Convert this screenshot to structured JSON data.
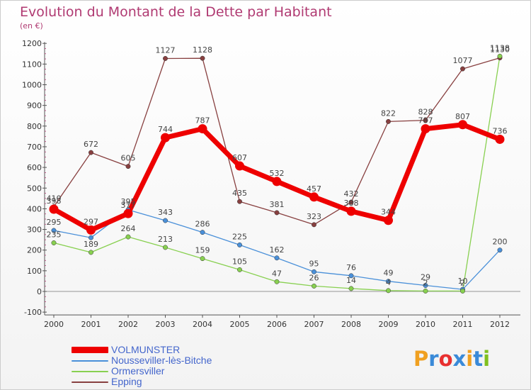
{
  "header": {
    "title": "Evolution du Montant de la Dette par Habitant",
    "subtitle": "(en €)"
  },
  "brand": {
    "logo_text": "Proxiti",
    "logo_colors": [
      "#f0a020",
      "#3a8ad8",
      "#e83030",
      "#3a8ad8",
      "#f0a020",
      "#3a8ad8",
      "#80c020"
    ]
  },
  "chart_data": {
    "type": "line",
    "title": "Evolution du Montant de la Dette par Habitant",
    "subtitle": "(en €)",
    "xlabel": "",
    "ylabel": "",
    "ylim": [
      -100,
      1200
    ],
    "yticks": [
      -100,
      0,
      100,
      200,
      300,
      400,
      500,
      600,
      700,
      800,
      900,
      1000,
      1100,
      1200
    ],
    "x": [
      "2000",
      "2001",
      "2002",
      "2003",
      "2004",
      "2005",
      "2006",
      "2007",
      "2008",
      "2009",
      "2010",
      "2011",
      "2012"
    ],
    "grid": false,
    "legend_position": "bottom-left",
    "series": [
      {
        "name": "VOLMUNSTER",
        "color": "#ee0000",
        "thick": true,
        "values": [
          398,
          297,
          377,
          744,
          787,
          607,
          532,
          457,
          388,
          344,
          787,
          807,
          736
        ],
        "labels": [
          "398",
          "297",
          "377",
          "744",
          "787",
          "607",
          "532",
          "457",
          "388",
          "344",
          "787",
          "807",
          "736"
        ]
      },
      {
        "name": "Nousseviller-lès-Bitche",
        "color": "#4a90d9",
        "thick": false,
        "values": [
          295,
          260,
          395,
          343,
          286,
          225,
          162,
          95,
          76,
          49,
          29,
          10,
          200
        ],
        "labels": [
          "295",
          "",
          "395",
          "343",
          "286",
          "225",
          "162",
          "95",
          "76",
          "49",
          "29",
          "10",
          "200"
        ]
      },
      {
        "name": "Ormersviller",
        "color": "#88d050",
        "thick": false,
        "values": [
          235,
          189,
          264,
          213,
          159,
          105,
          47,
          26,
          14,
          4,
          2,
          2,
          1138
        ],
        "labels": [
          "235",
          "189",
          "264",
          "213",
          "159",
          "105",
          "47",
          "26",
          "14",
          "4",
          "2",
          "2",
          "1138"
        ]
      },
      {
        "name": "Epping",
        "color": "#884040",
        "thick": false,
        "values": [
          410,
          672,
          605,
          1127,
          1128,
          435,
          381,
          323,
          432,
          822,
          828,
          1077,
          1130
        ],
        "labels": [
          "410",
          "672",
          "605",
          "1127",
          "1128",
          "435",
          "381",
          "323",
          "432",
          "822",
          "828",
          "1077",
          "1130"
        ]
      }
    ]
  }
}
